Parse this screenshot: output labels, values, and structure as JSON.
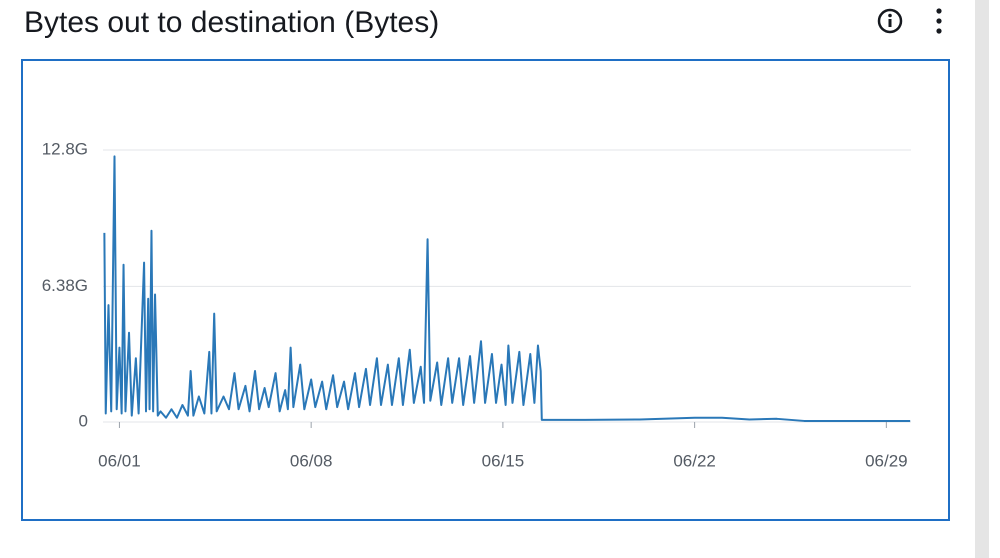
{
  "chart_data": {
    "type": "line",
    "title": "Bytes out to destination (Bytes)",
    "x": [
      0.45,
      0.5,
      0.6,
      0.7,
      0.82,
      0.9,
      1.0,
      1.08,
      1.15,
      1.22,
      1.35,
      1.45,
      1.6,
      1.7,
      1.9,
      1.97,
      2.05,
      2.1,
      2.17,
      2.23,
      2.3,
      2.4,
      2.5,
      2.7,
      2.9,
      3.1,
      3.3,
      3.5,
      3.6,
      3.7,
      3.9,
      4.1,
      4.28,
      4.36,
      4.46,
      4.55,
      4.8,
      5.0,
      5.2,
      5.35,
      5.6,
      5.75,
      5.95,
      6.1,
      6.3,
      6.45,
      6.7,
      6.85,
      7.05,
      7.15,
      7.25,
      7.35,
      7.6,
      7.75,
      8.0,
      8.15,
      8.4,
      8.55,
      8.8,
      8.95,
      9.2,
      9.35,
      9.6,
      9.75,
      10.0,
      10.15,
      10.4,
      10.55,
      10.8,
      10.95,
      11.2,
      11.35,
      11.6,
      11.75,
      12.0,
      12.12,
      12.25,
      12.35,
      12.6,
      12.75,
      13.0,
      13.15,
      13.4,
      13.55,
      13.8,
      13.95,
      14.2,
      14.35,
      14.6,
      14.75,
      14.95,
      15.1,
      15.2,
      15.35,
      15.6,
      15.75,
      16.0,
      16.15,
      16.28,
      16.38,
      16.42,
      18,
      20,
      22,
      23,
      24,
      25,
      26,
      28,
      29.87
    ],
    "series": [
      {
        "name": "Bytes out to destination",
        "color": "#2a78b8",
        "values": [
          8900000000.0,
          400000000.0,
          5500000000.0,
          500000000.0,
          12500000000.0,
          600000000.0,
          3500000000.0,
          400000000.0,
          7400000000.0,
          500000000.0,
          4200000000.0,
          300000000.0,
          3000000000.0,
          400000000.0,
          7500000000.0,
          500000000.0,
          5800000000.0,
          600000000.0,
          9000000000.0,
          500000000.0,
          6000000000.0,
          300000000.0,
          500000000.0,
          200000000.0,
          600000000.0,
          200000000.0,
          800000000.0,
          300000000.0,
          2400000000.0,
          300000000.0,
          1200000000.0,
          400000000.0,
          3300000000.0,
          400000000.0,
          5100000000.0,
          500000000.0,
          1200000000.0,
          600000000.0,
          2300000000.0,
          600000000.0,
          1700000000.0,
          500000000.0,
          2400000000.0,
          600000000.0,
          1600000000.0,
          700000000.0,
          2300000000.0,
          500000000.0,
          1500000000.0,
          600000000.0,
          3500000000.0,
          700000000.0,
          2700000000.0,
          600000000.0,
          2000000000.0,
          700000000.0,
          1900000000.0,
          600000000.0,
          2200000000.0,
          700000000.0,
          1900000000.0,
          600000000.0,
          2300000000.0,
          700000000.0,
          2500000000.0,
          800000000.0,
          3000000000.0,
          800000000.0,
          2700000000.0,
          800000000.0,
          3000000000.0,
          800000000.0,
          3400000000.0,
          900000000.0,
          2600000000.0,
          900000000.0,
          8600000000.0,
          1000000000.0,
          2800000000.0,
          800000000.0,
          3000000000.0,
          900000000.0,
          3000000000.0,
          800000000.0,
          3100000000.0,
          900000000.0,
          3800000000.0,
          900000000.0,
          3200000000.0,
          900000000.0,
          2700000000.0,
          800000000.0,
          3600000000.0,
          900000000.0,
          3300000000.0,
          800000000.0,
          3200000000.0,
          900000000.0,
          3600000000.0,
          2400000000.0,
          100000000.0,
          100000000.0,
          120000000.0,
          200000000.0,
          200000000.0,
          120000000.0,
          150000000.0,
          50000000.0,
          50000000.0,
          50000000.0
        ]
      }
    ],
    "xlim": [
      0.4,
      29.9
    ],
    "xticks": [
      {
        "value": 1,
        "label": "06/01"
      },
      {
        "value": 8,
        "label": "06/08"
      },
      {
        "value": 15,
        "label": "06/15"
      },
      {
        "value": 22,
        "label": "06/22"
      },
      {
        "value": 29,
        "label": "06/29"
      }
    ],
    "ylim": [
      0,
      16800000000.0
    ],
    "yticks": [
      {
        "value": 0,
        "label": "0"
      },
      {
        "value": 6380000000.0,
        "label": "6.38G"
      },
      {
        "value": 12800000000.0,
        "label": "12.8G"
      }
    ],
    "grid": true
  }
}
